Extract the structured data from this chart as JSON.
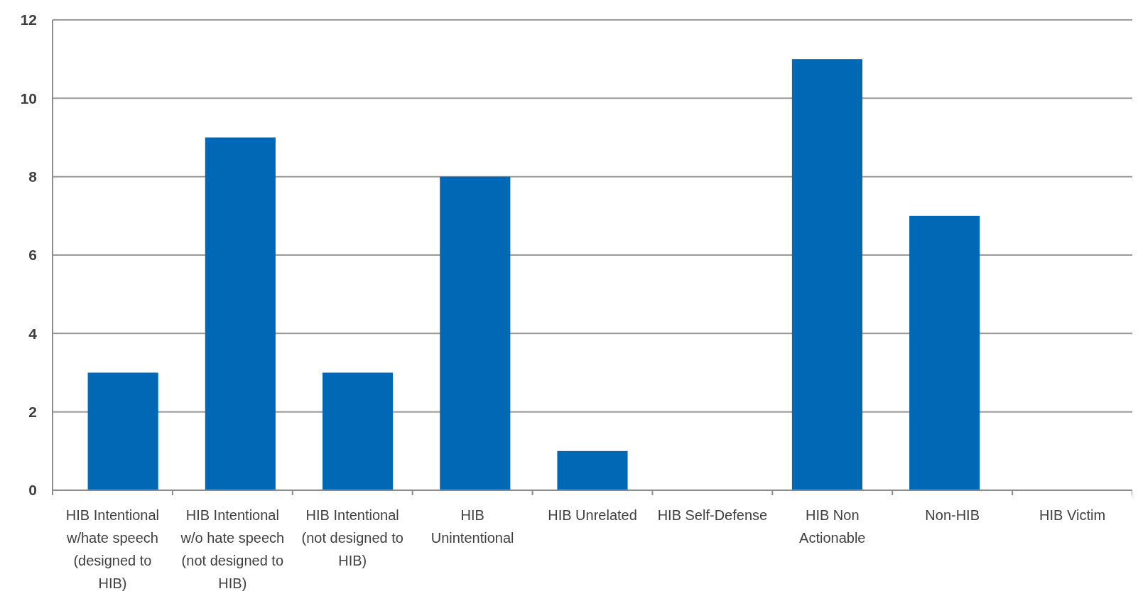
{
  "chart_data": {
    "type": "bar",
    "categories": [
      "HIB Intentional w/hate speech (designed to HIB)",
      "HIB Intentional w/o hate speech (not designed to HIB)",
      "HIB Intentional (not designed to HIB)",
      "HIB Unintentional",
      "HIB Unrelated",
      "HIB Self-Defense",
      "HIB Non Actionable",
      "Non-HIB",
      "HIB Victim"
    ],
    "values": [
      3,
      9,
      3,
      8,
      1,
      0,
      11,
      7,
      0
    ],
    "color": "#0068b5",
    "ylim": [
      0,
      12
    ],
    "yticks": [
      0,
      2,
      4,
      6,
      8,
      10,
      12
    ],
    "grid": "y"
  }
}
